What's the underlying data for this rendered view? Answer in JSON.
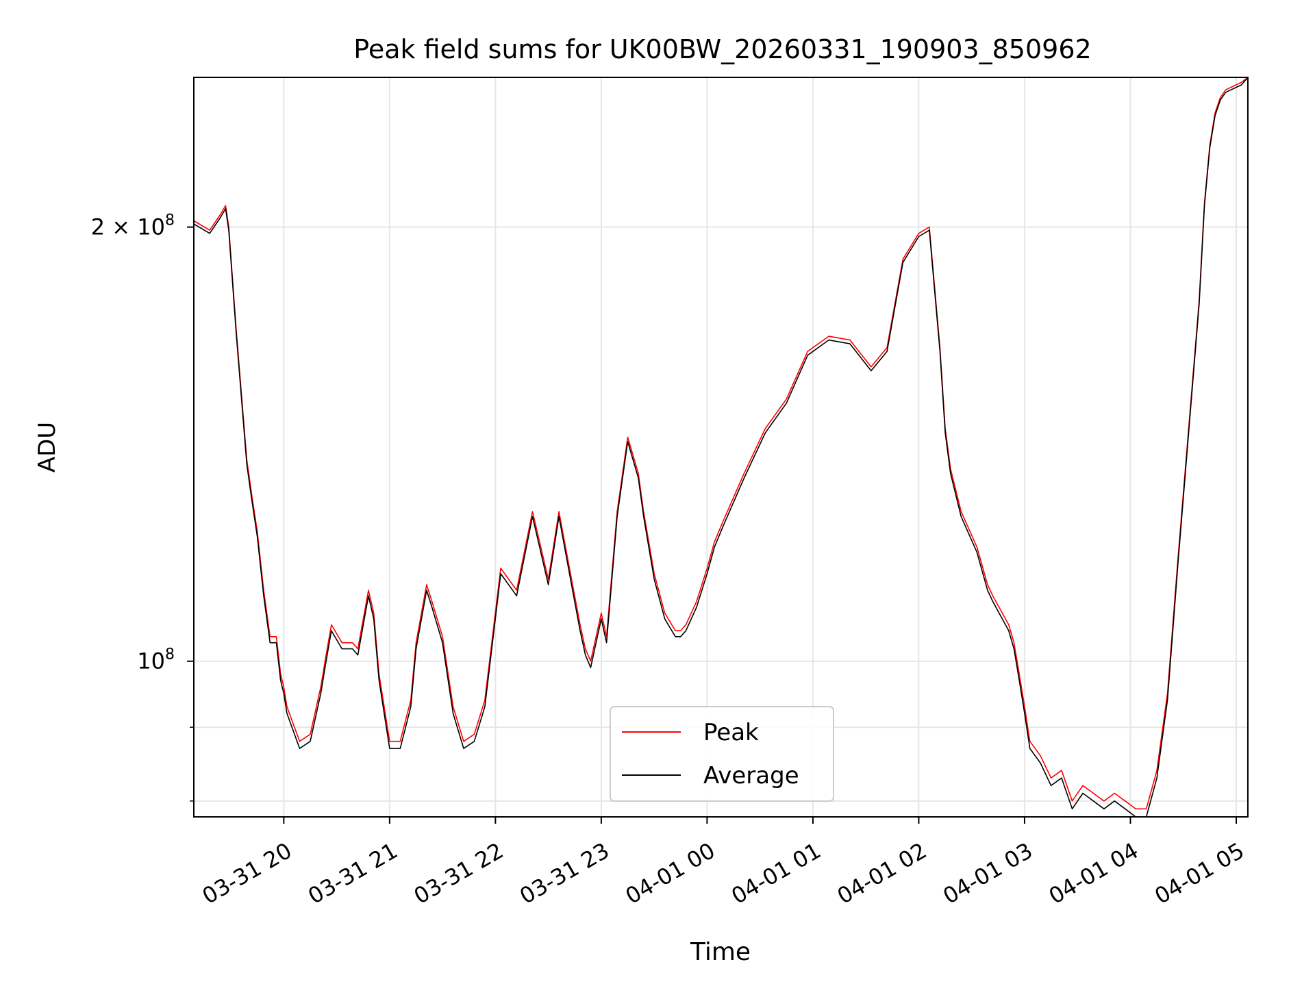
{
  "chart_data": {
    "type": "line",
    "title": "Peak field sums for UK00BW_20260331_190903_850962",
    "xlabel": "Time",
    "ylabel": "ADU",
    "yscale": "log",
    "grid": true,
    "legend_position": "lower-center",
    "x_unit": "hours since 2026-03-31 19:09",
    "xlim": [
      0,
      9.96
    ],
    "ylim": [
      78000000,
      254000000
    ],
    "x_ticks": [
      {
        "x": 0.85,
        "label": "03-31 20"
      },
      {
        "x": 1.85,
        "label": "03-31 21"
      },
      {
        "x": 2.85,
        "label": "03-31 22"
      },
      {
        "x": 3.85,
        "label": "03-31 23"
      },
      {
        "x": 4.85,
        "label": "04-01 00"
      },
      {
        "x": 5.85,
        "label": "04-01 01"
      },
      {
        "x": 6.85,
        "label": "04-01 02"
      },
      {
        "x": 7.85,
        "label": "04-01 03"
      },
      {
        "x": 8.85,
        "label": "04-01 04"
      },
      {
        "x": 9.85,
        "label": "04-01 05"
      }
    ],
    "y_ticks": [
      {
        "value": 100000000,
        "label": "10",
        "exp": "8"
      },
      {
        "value": 200000000,
        "label": "2 × 10",
        "exp": "8"
      }
    ],
    "y_minor_ticks": [
      80000000,
      90000000
    ],
    "x": [
      0,
      0.15,
      0.25,
      0.3,
      0.33,
      0.4,
      0.5,
      0.55,
      0.6,
      0.66,
      0.72,
      0.78,
      0.82,
      0.85,
      0.88,
      1.0,
      1.1,
      1.2,
      1.25,
      1.3,
      1.4,
      1.5,
      1.55,
      1.65,
      1.7,
      1.75,
      1.85,
      1.95,
      2.05,
      2.1,
      2.2,
      2.25,
      2.35,
      2.45,
      2.55,
      2.65,
      2.75,
      2.9,
      3.05,
      3.2,
      3.35,
      3.45,
      3.55,
      3.65,
      3.7,
      3.75,
      3.85,
      3.9,
      4.0,
      4.1,
      4.2,
      4.25,
      4.35,
      4.45,
      4.55,
      4.6,
      4.65,
      4.75,
      4.85,
      4.92,
      5.0,
      5.2,
      5.4,
      5.6,
      5.8,
      6.0,
      6.2,
      6.4,
      6.55,
      6.7,
      6.85,
      6.95,
      7.05,
      7.1,
      7.15,
      7.25,
      7.4,
      7.5,
      7.55,
      7.7,
      7.75,
      7.8,
      7.85,
      7.9,
      8.0,
      8.1,
      8.2,
      8.3,
      8.4,
      8.5,
      8.6,
      8.7,
      8.8,
      8.9,
      9.0,
      9.1,
      9.2,
      9.3,
      9.4,
      9.5,
      9.55,
      9.6,
      9.65,
      9.7,
      9.75,
      9.8,
      9.9,
      9.96
    ],
    "series": [
      {
        "name": "Peak",
        "color": "#ff0000",
        "values": [
          202000000,
          199000000,
          204000000,
          207000000,
          200000000,
          170000000,
          138000000,
          130000000,
          123000000,
          112000000,
          104000000,
          104000000,
          98000000,
          96000000,
          93000000,
          88000000,
          89000000,
          96000000,
          101000000,
          106000000,
          103000000,
          103000000,
          102000000,
          112000000,
          108000000,
          98000000,
          88000000,
          88000000,
          94000000,
          103000000,
          113000000,
          110000000,
          104000000,
          93000000,
          88000000,
          89000000,
          94000000,
          116000000,
          112000000,
          127000000,
          114000000,
          127000000,
          116000000,
          106000000,
          102000000,
          100000000,
          108000000,
          104000000,
          127000000,
          143000000,
          135000000,
          127000000,
          115000000,
          108000000,
          105000000,
          105000000,
          106000000,
          110000000,
          116000000,
          121000000,
          125000000,
          135000000,
          145000000,
          152000000,
          164000000,
          168000000,
          167000000,
          160000000,
          165000000,
          190000000,
          198000000,
          200000000,
          165000000,
          145000000,
          136000000,
          127000000,
          120000000,
          113000000,
          111000000,
          106000000,
          103000000,
          98000000,
          93000000,
          88000000,
          86000000,
          83000000,
          84000000,
          80000000,
          82000000,
          81000000,
          80000000,
          81000000,
          80000000,
          79000000,
          79000000,
          84000000,
          95000000,
          118000000,
          145000000,
          178000000,
          208000000,
          228000000,
          240000000,
          246000000,
          249000000,
          250000000,
          252000000,
          254000000
        ]
      },
      {
        "name": "Average",
        "color": "#000000",
        "values": [
          201000000,
          198000000,
          203000000,
          206000000,
          199000000,
          169000000,
          137000000,
          129000000,
          122000000,
          111000000,
          103000000,
          103000000,
          97000000,
          95000000,
          92000000,
          87000000,
          88000000,
          95000000,
          100000000,
          105000000,
          102000000,
          102000000,
          101000000,
          111000000,
          107000000,
          97000000,
          87000000,
          87000000,
          93000000,
          102000000,
          112000000,
          109000000,
          103000000,
          92000000,
          87000000,
          88000000,
          93000000,
          115000000,
          111000000,
          126000000,
          113000000,
          126000000,
          115000000,
          105000000,
          101000000,
          99000000,
          107000000,
          103000000,
          126000000,
          142000000,
          134000000,
          126000000,
          114000000,
          107000000,
          104000000,
          104000000,
          105000000,
          109000000,
          115000000,
          120000000,
          124000000,
          134000000,
          144000000,
          151000000,
          163000000,
          167000000,
          166000000,
          159000000,
          164000000,
          189000000,
          197000000,
          199000000,
          164000000,
          144000000,
          135000000,
          126000000,
          119000000,
          112000000,
          110000000,
          105000000,
          102000000,
          97000000,
          92000000,
          87000000,
          85000000,
          82000000,
          83000000,
          79000000,
          81000000,
          80000000,
          79000000,
          80000000,
          79000000,
          78000000,
          78000000,
          83000000,
          94000000,
          117000000,
          144000000,
          177000000,
          207000000,
          227000000,
          239000000,
          245000000,
          248000000,
          249000000,
          251000000,
          254000000
        ]
      }
    ]
  }
}
